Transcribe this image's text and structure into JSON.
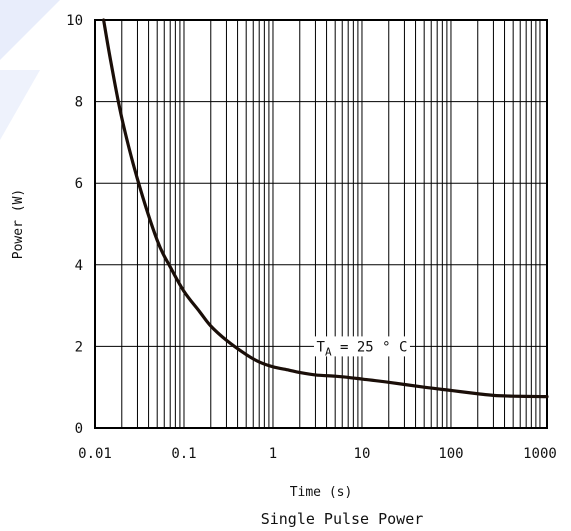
{
  "chart_data": {
    "type": "line",
    "title": "Single Pulse Power",
    "xlabel": "Time (s)",
    "ylabel": "Power (W)",
    "x_scale": "log",
    "xlim": [
      0.01,
      1200
    ],
    "ylim": [
      0,
      10
    ],
    "x_ticks": [
      0.01,
      0.1,
      1,
      10,
      100,
      1000
    ],
    "x_tick_labels": [
      "0.01",
      "0.1",
      "1",
      "10",
      "100",
      "1000"
    ],
    "y_ticks": [
      0,
      2,
      4,
      6,
      8,
      10
    ],
    "y_tick_labels": [
      "0",
      "2",
      "4",
      "6",
      "8",
      "10"
    ],
    "grid": true,
    "series": [
      {
        "x": [
          0.0125,
          0.015,
          0.02,
          0.03,
          0.05,
          0.07,
          0.1,
          0.15,
          0.2,
          0.3,
          0.5,
          0.7,
          1,
          1.5,
          2,
          3,
          5,
          7,
          10,
          20,
          50,
          100,
          200,
          300,
          500,
          1000,
          1200
        ],
        "y": [
          10,
          9.0,
          7.6,
          6.1,
          4.6,
          3.95,
          3.35,
          2.85,
          2.5,
          2.15,
          1.8,
          1.62,
          1.5,
          1.42,
          1.36,
          1.3,
          1.27,
          1.24,
          1.2,
          1.12,
          1.0,
          0.92,
          0.84,
          0.8,
          0.78,
          0.77,
          0.77
        ],
        "color": "#1a0e08"
      }
    ],
    "annotation": {
      "prefix": "T",
      "subscript": "A",
      "text": " = 25 ° C",
      "x": 10,
      "y": 2
    }
  }
}
